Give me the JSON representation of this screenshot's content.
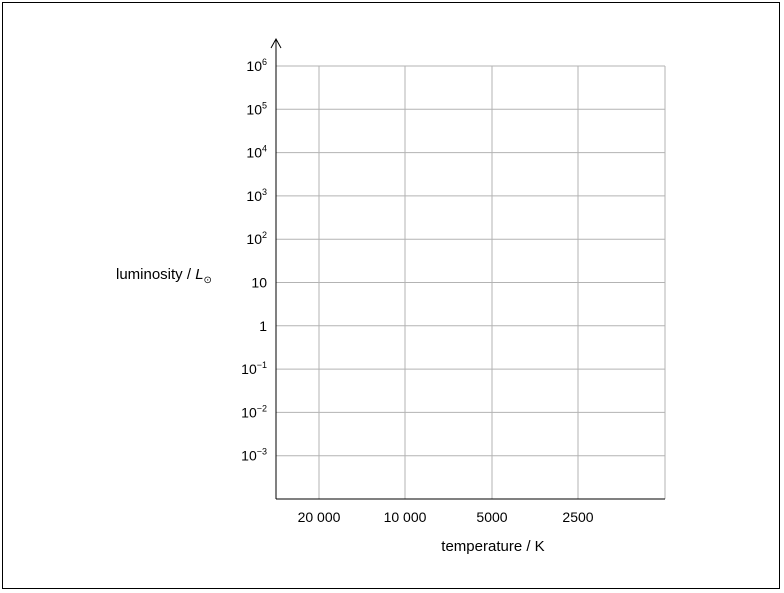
{
  "chart_data": {
    "type": "scatter",
    "title": "",
    "ylabel": {
      "prefix": "luminosity / ",
      "symbol": "L",
      "subscript": "⊙"
    },
    "xlabel": "temperature / K",
    "y_scale": "log",
    "ylim": [
      1,
      1000000
    ],
    "x_scale": "log",
    "x_reversed": true,
    "y_ticks": [
      {
        "base": "10",
        "exp": "6"
      },
      {
        "base": "10",
        "exp": "5"
      },
      {
        "base": "10",
        "exp": "4"
      },
      {
        "base": "10",
        "exp": "3"
      },
      {
        "base": "10",
        "exp": "2"
      },
      {
        "base": "10",
        "exp": ""
      },
      {
        "base": "1",
        "exp": ""
      },
      {
        "base": "10",
        "exp": "−1"
      },
      {
        "base": "10",
        "exp": "−2"
      },
      {
        "base": "10",
        "exp": "−3"
      }
    ],
    "x_ticks": [
      "20 000",
      "10 000",
      "5000",
      "2500"
    ],
    "grid": true,
    "series": []
  }
}
